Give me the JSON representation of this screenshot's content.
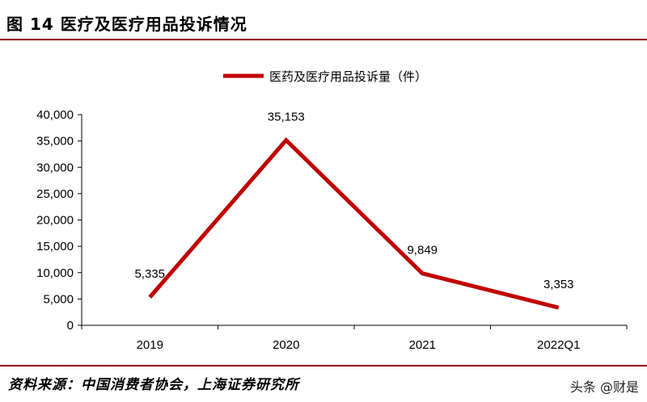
{
  "figure": {
    "title": "图 14 医疗及医疗用品投诉情况",
    "source": "资料来源：中国消费者协会，上海证券研究所",
    "watermark": "头条 @财是"
  },
  "colors": {
    "line": "#c00000",
    "rule": "#8b0000",
    "axis": "#000000"
  },
  "chart_data": {
    "type": "line",
    "categories": [
      "2019",
      "2020",
      "2021",
      "2022Q1"
    ],
    "series": [
      {
        "name": "医药及医疗用品投诉量（件）",
        "values": [
          5335,
          35153,
          9849,
          3353
        ],
        "labels": [
          "5,335",
          "35,153",
          "9,849",
          "3,353"
        ]
      }
    ],
    "ylim": [
      0,
      40000
    ],
    "yticks": [
      0,
      5000,
      10000,
      15000,
      20000,
      25000,
      30000,
      35000,
      40000
    ],
    "ytick_labels": [
      "0",
      "5,000",
      "10,000",
      "15,000",
      "20,000",
      "25,000",
      "30,000",
      "35,000",
      "40,000"
    ],
    "legend_position": "top-center",
    "grid": false
  }
}
